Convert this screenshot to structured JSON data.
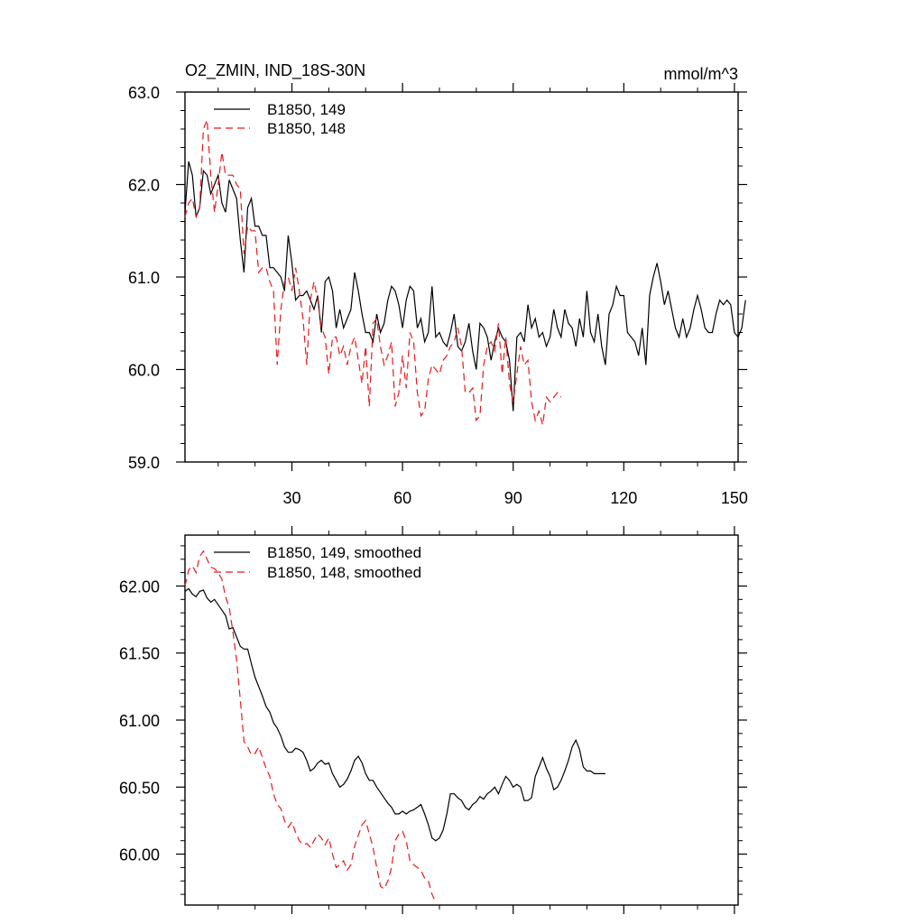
{
  "colors": {
    "series_a": "#000000",
    "series_b": "#e31a1c",
    "frame": "#000000"
  },
  "chart_data": [
    {
      "type": "line",
      "title": "O2_ZMIN, IND_18S-30N",
      "units": "mmol/m^3",
      "xlim": [
        1,
        151
      ],
      "ylim": [
        59.0,
        63.0
      ],
      "xticks": [
        30,
        60,
        90,
        120,
        150
      ],
      "xtick_labels": [
        "30",
        "60",
        "90",
        "120",
        "150"
      ],
      "yticks": [
        59.0,
        60.0,
        61.0,
        62.0,
        63.0
      ],
      "ytick_labels": [
        "59.0",
        "60.0",
        "61.0",
        "62.0",
        "63.0"
      ],
      "legend_position": "top-left",
      "series": [
        {
          "name": "B1850, 149",
          "style": "solid",
          "values": [
            61.7,
            62.25,
            62.1,
            61.65,
            61.75,
            62.15,
            62.1,
            61.9,
            62.0,
            62.1,
            61.8,
            61.7,
            62.05,
            61.95,
            61.85,
            61.4,
            61.05,
            61.75,
            61.85,
            61.55,
            61.55,
            61.45,
            61.45,
            61.1,
            61.1,
            61.05,
            61.0,
            60.85,
            61.45,
            61.15,
            60.75,
            60.8,
            60.8,
            60.85,
            60.75,
            60.65,
            60.8,
            60.4,
            60.95,
            61.0,
            60.85,
            60.45,
            60.65,
            60.45,
            60.55,
            60.65,
            61.05,
            60.85,
            60.6,
            60.4,
            60.4,
            60.3,
            60.6,
            60.4,
            60.5,
            60.75,
            60.9,
            60.85,
            60.7,
            60.45,
            60.75,
            60.9,
            60.85,
            60.45,
            60.55,
            60.3,
            60.4,
            60.9,
            60.35,
            60.4,
            60.3,
            60.25,
            60.4,
            60.6,
            60.25,
            60.2,
            60.3,
            60.5,
            60.2,
            60.0,
            60.5,
            60.45,
            60.35,
            60.1,
            60.3,
            60.45,
            60.35,
            60.3,
            60.1,
            59.55,
            60.35,
            60.4,
            60.3,
            60.7,
            60.45,
            60.55,
            60.35,
            60.4,
            60.25,
            60.35,
            60.65,
            60.45,
            60.35,
            60.65,
            60.5,
            60.45,
            60.25,
            60.55,
            60.35,
            60.85,
            60.4,
            60.3,
            60.6,
            60.25,
            60.05,
            60.6,
            60.7,
            60.9,
            60.8,
            60.8,
            60.4,
            60.35,
            60.3,
            60.15,
            60.45,
            60.05,
            60.8,
            61.0,
            61.15,
            60.95,
            60.7,
            60.85,
            60.65,
            60.45,
            60.35,
            60.55,
            60.35,
            60.45,
            60.65,
            60.8,
            60.65,
            60.45,
            60.4,
            60.4,
            60.6,
            60.75,
            60.7,
            60.75,
            60.7,
            60.4,
            60.35,
            60.45,
            60.75
          ],
          "x_start": 1
        },
        {
          "name": "B1850, 148",
          "style": "dashed",
          "values": [
            61.65,
            61.8,
            61.85,
            61.65,
            61.75,
            62.6,
            62.7,
            62.1,
            61.7,
            62.0,
            62.35,
            62.1,
            62.1,
            62.1,
            62.0,
            61.95,
            61.25,
            61.55,
            61.5,
            61.5,
            61.05,
            61.1,
            61.1,
            60.95,
            60.85,
            60.05,
            60.65,
            60.95,
            61.0,
            60.85,
            61.1,
            60.85,
            60.55,
            60.05,
            60.75,
            60.95,
            60.75,
            60.45,
            60.35,
            59.95,
            60.35,
            60.35,
            60.15,
            60.25,
            60.05,
            60.25,
            60.35,
            60.1,
            59.85,
            60.25,
            59.6,
            60.5,
            60.55,
            60.25,
            60.05,
            60.15,
            60.3,
            59.6,
            59.75,
            60.15,
            59.8,
            60.4,
            60.3,
            59.75,
            59.5,
            59.55,
            59.9,
            60.05,
            60.0,
            59.95,
            60.1,
            60.15,
            60.25,
            60.3,
            60.45,
            60.25,
            59.75,
            59.75,
            59.8,
            59.45,
            59.5,
            60.05,
            60.25,
            60.3,
            60.2,
            60.5,
            59.95,
            60.35,
            59.85,
            59.65,
            59.95,
            60.25,
            60.05,
            60.1,
            59.65,
            59.45,
            59.55,
            59.4,
            59.7,
            59.65,
            59.7,
            59.75,
            59.7
          ],
          "x_start": 1
        }
      ]
    },
    {
      "type": "line",
      "xlim": [
        1,
        151
      ],
      "ylim": [
        59.62,
        62.38
      ],
      "xticks": [
        30,
        60,
        90,
        120,
        150
      ],
      "yticks": [
        60.0,
        60.5,
        61.0,
        61.5,
        62.0
      ],
      "ytick_labels": [
        "60.00",
        "60.50",
        "61.00",
        "61.50",
        "62.00"
      ],
      "legend_position": "top-left",
      "series": [
        {
          "name": "B1850, 149, smoothed",
          "style": "solid",
          "values": [
            61.96,
            61.98,
            61.94,
            61.92,
            61.96,
            61.97,
            61.91,
            61.88,
            61.9,
            61.86,
            61.82,
            61.78,
            61.68,
            61.69,
            61.62,
            61.55,
            61.53,
            61.53,
            61.42,
            61.32,
            61.25,
            61.18,
            61.1,
            61.06,
            60.98,
            60.94,
            60.88,
            60.8,
            60.76,
            60.76,
            60.79,
            60.78,
            60.76,
            60.7,
            60.62,
            60.64,
            60.68,
            60.7,
            60.67,
            60.68,
            60.6,
            60.55,
            60.5,
            60.52,
            60.56,
            60.62,
            60.7,
            60.73,
            60.68,
            60.6,
            60.55,
            60.55,
            60.5,
            60.46,
            60.42,
            60.38,
            60.35,
            60.3,
            60.3,
            60.32,
            60.3,
            60.32,
            60.33,
            60.35,
            60.37,
            60.3,
            60.22,
            60.12,
            60.1,
            60.12,
            60.18,
            60.3,
            60.45,
            60.45,
            60.42,
            60.4,
            60.35,
            60.33,
            60.37,
            60.39,
            60.43,
            60.41,
            60.45,
            60.47,
            60.5,
            60.45,
            60.52,
            60.58,
            60.55,
            60.5,
            60.52,
            60.5,
            60.4,
            60.4,
            60.42,
            60.58,
            60.65,
            60.72,
            60.64,
            60.58,
            60.48,
            60.5,
            60.55,
            60.62,
            60.7,
            60.8,
            60.85,
            60.78,
            60.65,
            60.62,
            60.62,
            60.6,
            60.6,
            60.6,
            60.6
          ],
          "x_start": 1
        },
        {
          "name": "B1850, 148, smoothed",
          "style": "dashed",
          "values": [
            62.0,
            62.12,
            62.15,
            62.1,
            62.22,
            62.26,
            62.2,
            62.14,
            62.13,
            62.1,
            62.05,
            61.92,
            61.84,
            61.66,
            61.45,
            61.15,
            60.84,
            60.8,
            60.74,
            60.75,
            60.8,
            60.72,
            60.64,
            60.58,
            60.45,
            60.37,
            60.34,
            60.25,
            60.2,
            60.24,
            60.16,
            60.1,
            60.07,
            60.08,
            60.05,
            60.1,
            60.15,
            60.12,
            60.07,
            60.12,
            60.0,
            59.9,
            59.92,
            59.95,
            59.88,
            59.92,
            60.06,
            60.14,
            60.22,
            60.25,
            60.15,
            60.05,
            59.9,
            59.76,
            59.74,
            59.8,
            59.9,
            60.1,
            60.15,
            60.17,
            60.1,
            59.95,
            59.92,
            59.9,
            59.88,
            59.82,
            59.8,
            59.7,
            59.64
          ],
          "x_start": 1
        }
      ]
    }
  ]
}
